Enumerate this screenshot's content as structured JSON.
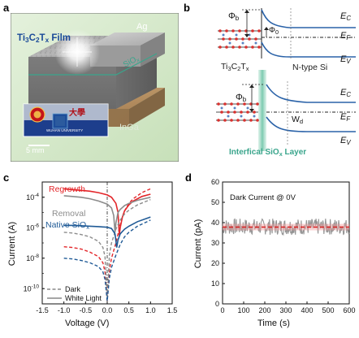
{
  "panels": {
    "a": {
      "label": "a",
      "film_label": "Ti",
      "film_sub1": "3",
      "film_mid": "C",
      "film_sub2": "2",
      "film_T": "T",
      "film_sub3": "x",
      "film_suffix": " Film",
      "ag_label": "Ag",
      "sio_label": "SiO",
      "sio_sub": "x",
      "inga_label": "InGa",
      "scale_label": "5 mm",
      "logo_text": "大學",
      "univ_text": "WUHAN UNIVERSITY"
    },
    "b": {
      "label": "b",
      "phi_b_top": "Φ",
      "phi_b_sub": "b",
      "phi0": "Φ",
      "phi0_sub": "0",
      "ec": "E",
      "ec_sub": "C",
      "ef": "E",
      "ef_sub": "F",
      "ev": "E",
      "ev_sub": "V",
      "mxene_label": "Ti",
      "mxene_sub1": "3",
      "mxene_mid": "C",
      "mxene_sub2": "2",
      "mxene_T": "T",
      "mxene_sub3": "x",
      "nsi_label": "N-type Si",
      "wd": "W",
      "wd_sub": "d",
      "interfacial": "Interfical SiO",
      "interfacial_sub": "x",
      "interfacial_suffix": " Layer"
    }
  },
  "colors": {
    "band_blue": "#2a62a8",
    "regrowth": "#e3262a",
    "removal": "#8c8c8c",
    "native": "#1f5a96",
    "teal": "#3aa58c",
    "panel_a_bg": "#d5e9cc",
    "noise_gray": "#888888",
    "mean_red": "#d81d1d"
  },
  "chart_data": [
    {
      "id": "c",
      "label": "c",
      "type": "line",
      "xlabel": "Voltage (V)",
      "ylabel": "Current (A)",
      "xlim": [
        -1.5,
        1.5
      ],
      "ylim_log10": [
        -11,
        -3
      ],
      "yscale": "log",
      "x_ticks": [
        "-1.5",
        "-1.0",
        "-0.5",
        "0.0",
        "0.5",
        "1.0",
        "1.5"
      ],
      "y_ticks": [
        {
          "base": "10",
          "exp": "-10",
          "value_log": -10
        },
        {
          "base": "10",
          "exp": "-8",
          "value_log": -8
        },
        {
          "base": "10",
          "exp": "-6",
          "value_log": -6
        },
        {
          "base": "10",
          "exp": "-4",
          "value_log": -4
        }
      ],
      "annotations": {
        "regrowth": "Regrowth",
        "removal": "Removal",
        "native": "Native SiO",
        "native_sub": "x"
      },
      "legend": {
        "position": "bottom-left",
        "dark": "Dark",
        "white": "White Light"
      },
      "series": [
        {
          "name": "Regrowth",
          "condition": "White Light",
          "color": "#e3262a",
          "x": [
            -1.0,
            -0.8,
            -0.6,
            -0.4,
            -0.2,
            0.0,
            0.1,
            0.2,
            0.25,
            0.28,
            0.3,
            0.35,
            0.4,
            0.5,
            0.6,
            0.8,
            1.0
          ],
          "ylog": [
            -3.45,
            -3.5,
            -3.55,
            -3.6,
            -3.7,
            -3.85,
            -4.0,
            -4.4,
            -5.0,
            -6.5,
            -6.0,
            -5.3,
            -4.9,
            -4.5,
            -4.25,
            -3.95,
            -3.8
          ]
        },
        {
          "name": "Regrowth",
          "condition": "Dark",
          "color": "#e3262a",
          "x": [
            -1.0,
            -0.8,
            -0.6,
            -0.4,
            -0.2,
            -0.1,
            -0.05,
            0.0,
            0.05,
            0.1,
            0.2,
            0.3,
            0.4,
            0.5,
            0.6,
            0.8,
            1.0
          ],
          "ylog": [
            -7.25,
            -7.3,
            -7.4,
            -7.6,
            -7.9,
            -8.3,
            -8.9,
            -10.8,
            -8.8,
            -8.0,
            -7.0,
            -5.8,
            -4.9,
            -4.4,
            -4.1,
            -3.7,
            -3.45
          ]
        },
        {
          "name": "Removal",
          "condition": "White Light",
          "color": "#8c8c8c",
          "x": [
            -1.0,
            -0.8,
            -0.6,
            -0.4,
            -0.2,
            0.0,
            0.1,
            0.15,
            0.18,
            0.2,
            0.25,
            0.3,
            0.4,
            0.5,
            0.7,
            1.0
          ],
          "ylog": [
            -3.9,
            -3.95,
            -4.0,
            -4.1,
            -4.25,
            -4.45,
            -4.7,
            -5.2,
            -6.3,
            -5.7,
            -5.0,
            -4.8,
            -4.55,
            -4.4,
            -4.2,
            -4.0
          ]
        },
        {
          "name": "Removal",
          "condition": "Dark",
          "color": "#8c8c8c",
          "x": [
            -1.0,
            -0.8,
            -0.6,
            -0.4,
            -0.2,
            -0.1,
            -0.05,
            0.0,
            0.05,
            0.1,
            0.2,
            0.3,
            0.4,
            0.5,
            0.7,
            1.0
          ],
          "ylog": [
            -6.3,
            -6.35,
            -6.45,
            -6.6,
            -6.9,
            -7.3,
            -7.9,
            -10.8,
            -7.8,
            -7.0,
            -6.1,
            -5.5,
            -5.1,
            -4.85,
            -4.5,
            -4.15
          ]
        },
        {
          "name": "Native SiOx",
          "condition": "White Light",
          "color": "#1f5a96",
          "x": [
            -1.0,
            -0.8,
            -0.6,
            -0.4,
            -0.2,
            0.0,
            0.1,
            0.18,
            0.22,
            0.25,
            0.3,
            0.4,
            0.5,
            0.7,
            1.0
          ],
          "ylog": [
            -5.85,
            -5.85,
            -5.87,
            -5.9,
            -5.93,
            -5.97,
            -6.05,
            -6.4,
            -7.3,
            -6.8,
            -6.4,
            -6.1,
            -5.9,
            -5.6,
            -5.3
          ]
        },
        {
          "name": "Native SiOx",
          "condition": "Dark",
          "color": "#1f5a96",
          "x": [
            -1.0,
            -0.8,
            -0.6,
            -0.4,
            -0.2,
            -0.1,
            -0.05,
            0.0,
            0.05,
            0.1,
            0.2,
            0.3,
            0.4,
            0.5,
            0.7,
            1.0
          ],
          "ylog": [
            -8.0,
            -8.05,
            -8.15,
            -8.3,
            -8.55,
            -8.9,
            -9.4,
            -10.8,
            -9.3,
            -8.6,
            -7.8,
            -7.1,
            -6.6,
            -6.3,
            -5.9,
            -5.5
          ]
        }
      ]
    },
    {
      "id": "d",
      "label": "d",
      "type": "line",
      "title": "Dark Current @ 0V",
      "xlabel": "Time (s)",
      "ylabel": "Current (pA)",
      "xlim": [
        0,
        600
      ],
      "ylim": [
        0,
        60
      ],
      "x_ticks": [
        "0",
        "100",
        "200",
        "300",
        "400",
        "500",
        "600"
      ],
      "y_ticks": [
        "0",
        "10",
        "20",
        "30",
        "40",
        "50",
        "60"
      ],
      "series": [
        {
          "name": "Dark current",
          "color": "#888888",
          "x_range": [
            0,
            600
          ],
          "noise_band": [
            34,
            42
          ],
          "ylog": null
        },
        {
          "name": "Mean",
          "color": "#d81d1d",
          "values": [
            37.8,
            37.8
          ]
        }
      ]
    }
  ]
}
